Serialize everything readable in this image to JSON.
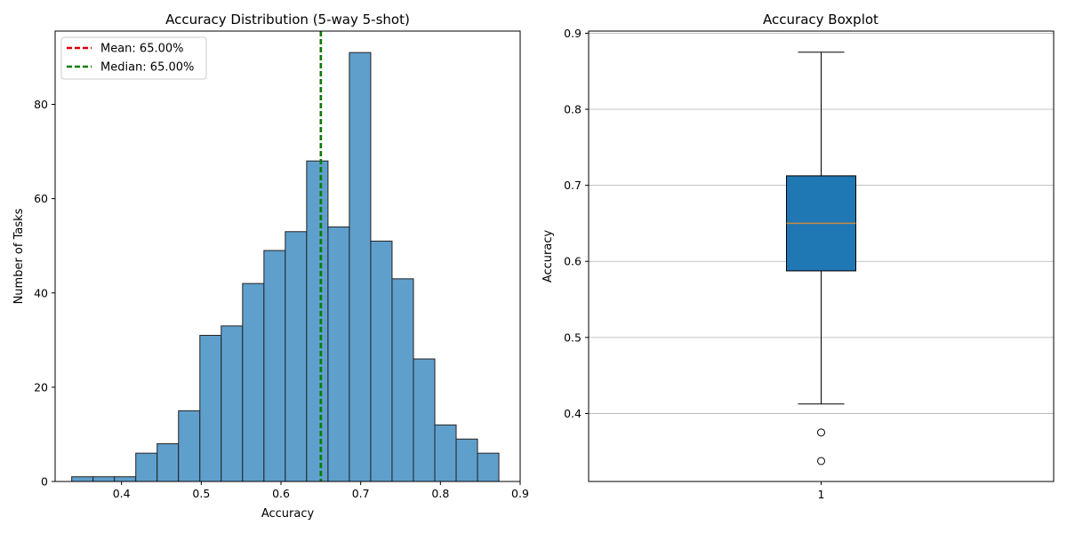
{
  "chart_data": [
    {
      "type": "bar",
      "title": "Accuracy Distribution (5-way 5-shot)",
      "xlabel": "Accuracy",
      "ylabel": "Number of Tasks",
      "xlim": [
        0.3167,
        0.9
      ],
      "ylim": [
        0,
        95.55
      ],
      "xticks": [
        0.4,
        0.5,
        0.6,
        0.7,
        0.8,
        0.9
      ],
      "xtick_labels": [
        "0.4",
        "0.5",
        "0.6",
        "0.7",
        "0.8",
        "0.9"
      ],
      "yticks": [
        0,
        20,
        40,
        60,
        80
      ],
      "ytick_labels": [
        "0",
        "20",
        "40",
        "60",
        "80"
      ],
      "bin_start": 0.3375,
      "bin_width": 0.02679,
      "values": [
        1,
        1,
        1,
        6,
        8,
        15,
        31,
        33,
        42,
        49,
        53,
        68,
        54,
        91,
        51,
        43,
        26,
        12,
        9,
        6
      ],
      "bar_color": "#5f9fcc",
      "bar_edge_color": "#222222",
      "mean": 0.65,
      "median": 0.65,
      "mean_color": "#e00000",
      "median_color": "#008000",
      "legend": {
        "position": "top-left",
        "entries": [
          "Mean: 65.00%",
          "Median: 65.00%"
        ]
      }
    },
    {
      "type": "boxplot",
      "title": "Accuracy Boxplot",
      "ylabel": "Accuracy",
      "ylim": [
        0.3106,
        0.9028
      ],
      "yticks": [
        0.4,
        0.5,
        0.6,
        0.7,
        0.8,
        0.9
      ],
      "ytick_labels": [
        "0.4",
        "0.5",
        "0.6",
        "0.7",
        "0.8",
        "0.9"
      ],
      "xtick_labels": [
        "1"
      ],
      "grid": "horizontal",
      "box_color": "#1f77b4",
      "median_color": "#c78a3f",
      "whisker_low": 0.4125,
      "q1": 0.5875,
      "median": 0.65,
      "q3": 0.7125,
      "whisker_high": 0.875,
      "outliers": [
        0.375,
        0.3375
      ]
    }
  ]
}
